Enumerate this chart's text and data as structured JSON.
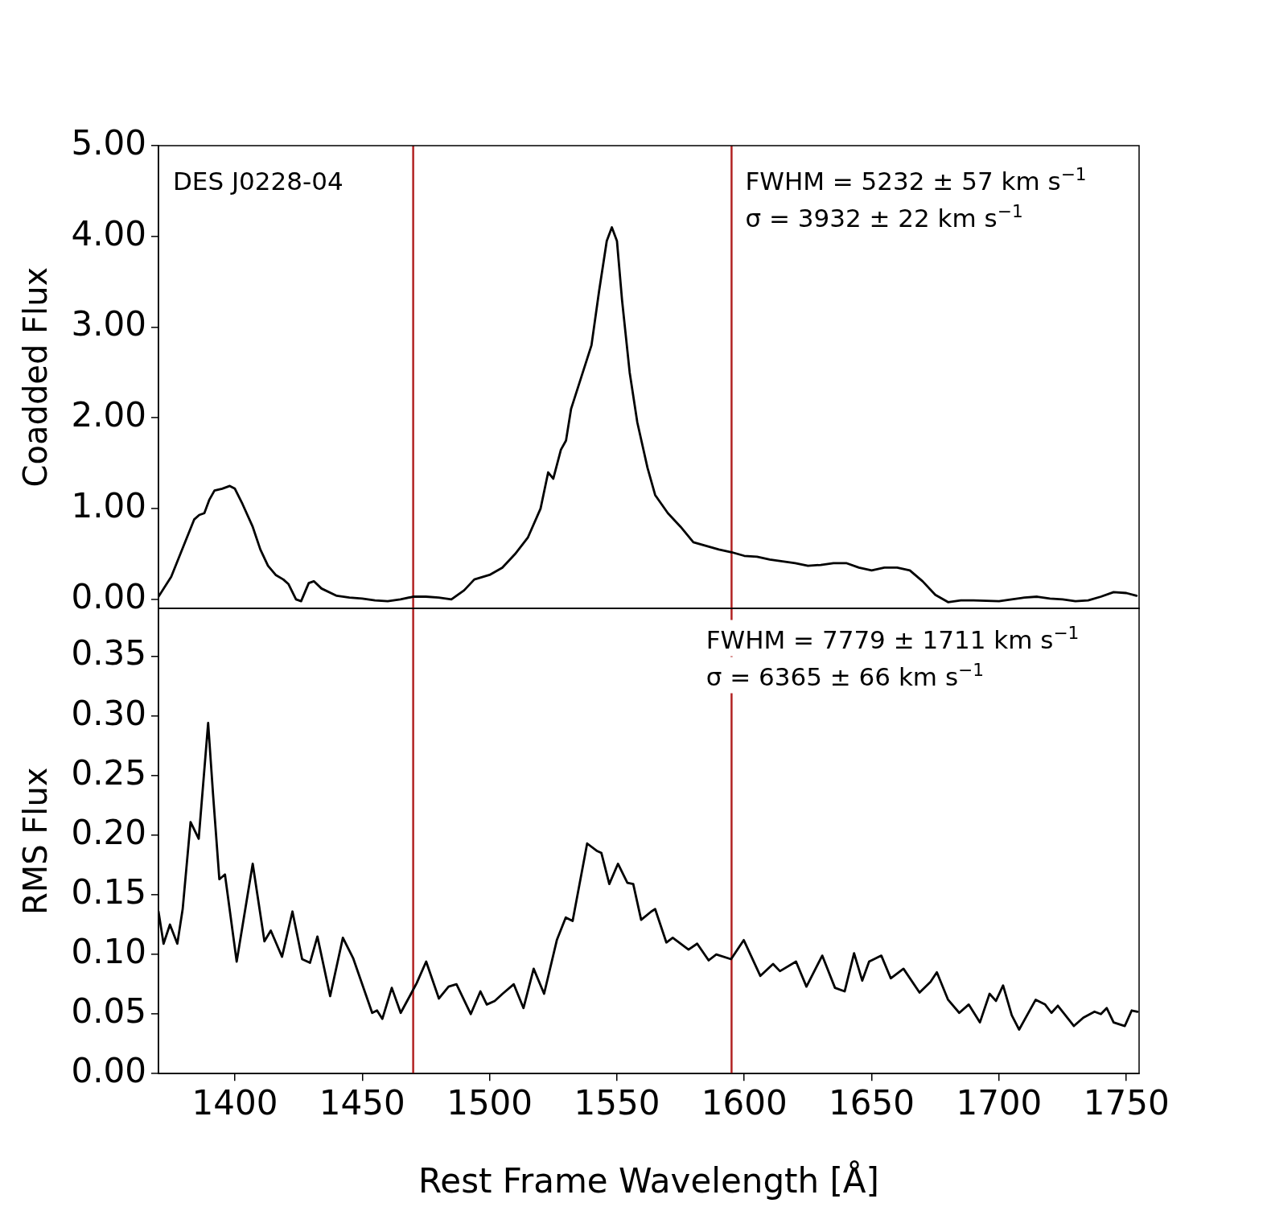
{
  "chart_data": [
    {
      "type": "line",
      "ylabel": "Coadded Flux",
      "xlim": [
        1370,
        1755
      ],
      "ylim": [
        -0.1,
        5
      ],
      "yticks": [
        {
          "value": 0,
          "label": "0.00"
        },
        {
          "value": 1,
          "label": "1.00"
        },
        {
          "value": 2,
          "label": "2.00"
        },
        {
          "value": 3,
          "label": "3.00"
        },
        {
          "value": 4,
          "label": "4.00"
        },
        {
          "value": 5,
          "label": "5.00"
        }
      ],
      "tick_labels": "y",
      "grid": false,
      "legend": false,
      "marker": "none",
      "line_style": "solid",
      "annotations": [
        "DES J0228-04",
        "FWHM = 5232 ± 57 km s$^{−1}$",
        "σ = 3932 ± 22 km s$^{−1}$"
      ],
      "ref_lines": [
        {
          "axis": "x",
          "value": 1470,
          "color": "#b22222"
        },
        {
          "axis": "x",
          "value": 1595,
          "color": "#b22222"
        }
      ],
      "series": [
        {
          "color": "#000000",
          "x": [
            1370,
            1375,
            1380,
            1384,
            1386,
            1388,
            1390,
            1392,
            1395,
            1398,
            1400,
            1403,
            1407,
            1410,
            1413,
            1416,
            1419,
            1421,
            1424,
            1426,
            1429,
            1431,
            1434,
            1440,
            1445,
            1450,
            1455,
            1460,
            1465,
            1470,
            1475,
            1480,
            1485,
            1490,
            1494,
            1500,
            1505,
            1510,
            1515,
            1520,
            1523,
            1525,
            1528,
            1530,
            1532,
            1536,
            1540,
            1543,
            1546,
            1548,
            1550,
            1552,
            1555,
            1558,
            1562,
            1565,
            1570,
            1575,
            1580,
            1585,
            1590,
            1595,
            1600,
            1605,
            1610,
            1620,
            1625,
            1630,
            1635,
            1640,
            1645,
            1650,
            1655,
            1660,
            1665,
            1670,
            1675,
            1680,
            1685,
            1690,
            1700,
            1705,
            1710,
            1715,
            1720,
            1725,
            1730,
            1735,
            1740,
            1745,
            1750,
            1754
          ],
          "values": [
            0.03,
            0.25,
            0.6,
            0.88,
            0.93,
            0.95,
            1.1,
            1.2,
            1.22,
            1.25,
            1.22,
            1.05,
            0.8,
            0.55,
            0.37,
            0.27,
            0.22,
            0.17,
            0.0,
            -0.02,
            0.18,
            0.2,
            0.12,
            0.04,
            0.02,
            0.01,
            -0.01,
            -0.02,
            0.0,
            0.03,
            0.03,
            0.02,
            0.0,
            0.1,
            0.22,
            0.27,
            0.35,
            0.5,
            0.68,
            1.0,
            1.4,
            1.33,
            1.65,
            1.75,
            2.1,
            2.45,
            2.8,
            3.4,
            3.95,
            4.1,
            3.95,
            3.3,
            2.5,
            1.95,
            1.45,
            1.15,
            0.95,
            0.8,
            0.63,
            0.59,
            0.55,
            0.52,
            0.48,
            0.47,
            0.44,
            0.4,
            0.37,
            0.38,
            0.4,
            0.4,
            0.35,
            0.32,
            0.35,
            0.35,
            0.32,
            0.2,
            0.05,
            -0.03,
            -0.01,
            -0.01,
            -0.02,
            0.0,
            0.02,
            0.03,
            0.01,
            0.0,
            -0.02,
            -0.01,
            0.03,
            0.08,
            0.07,
            0.04
          ]
        }
      ]
    },
    {
      "type": "line",
      "xlabel": "Rest Frame Wavelength [Å]",
      "ylabel": "RMS Flux",
      "xlim": [
        1370,
        1755
      ],
      "ylim": [
        0,
        0.39
      ],
      "xticks": [
        1400,
        1450,
        1500,
        1550,
        1600,
        1650,
        1700,
        1750
      ],
      "yticks": [
        {
          "value": 0,
          "label": "0.00"
        },
        {
          "value": 0.05,
          "label": "0.05"
        },
        {
          "value": 0.1,
          "label": "0.10"
        },
        {
          "value": 0.15,
          "label": "0.15"
        },
        {
          "value": 0.2,
          "label": "0.20"
        },
        {
          "value": 0.25,
          "label": "0.25"
        },
        {
          "value": 0.3,
          "label": "0.30"
        },
        {
          "value": 0.35,
          "label": "0.35"
        }
      ],
      "grid": false,
      "legend": false,
      "marker": "none",
      "line_style": "solid",
      "annotations": [
        "FWHM = 7779 ± 1711 km s$^{−1}$",
        "σ = 6365 ± 66 km s$^{−1}$"
      ],
      "ref_lines": [
        {
          "axis": "x",
          "value": 1470,
          "color": "#b22222"
        },
        {
          "axis": "x",
          "value": 1595,
          "color": "#b22222"
        }
      ],
      "series": [
        {
          "color": "#000000",
          "x": [
            1370,
            1372,
            1374.5,
            1377.4,
            1379.5,
            1382.6,
            1385.8,
            1389.5,
            1391.4,
            1393.9,
            1396.1,
            1400.7,
            1407,
            1411.6,
            1414.1,
            1418.5,
            1422.6,
            1426.4,
            1429.5,
            1432.4,
            1437.4,
            1442.4,
            1446.4,
            1453.9,
            1455.8,
            1457.9,
            1461.6,
            1465.1,
            1468.9,
            1471.4,
            1475.1,
            1480.1,
            1483.9,
            1487,
            1492.6,
            1496.4,
            1498.9,
            1502,
            1505.1,
            1509.5,
            1513.3,
            1517.3,
            1521.4,
            1526.4,
            1529.9,
            1532.6,
            1538.3,
            1542,
            1543.9,
            1547,
            1550.4,
            1554.1,
            1556.4,
            1559.5,
            1563.5,
            1565,
            1569.4,
            1571.9,
            1578.1,
            1581.5,
            1586,
            1589,
            1594.8,
            1599.8,
            1606.3,
            1611.3,
            1614,
            1620.3,
            1624.4,
            1630.6,
            1635.6,
            1639.4,
            1643.1,
            1646.3,
            1649,
            1653.8,
            1657.5,
            1662.5,
            1668.8,
            1673.1,
            1675.6,
            1680,
            1684.4,
            1688.1,
            1692.5,
            1696.3,
            1698.8,
            1701.6,
            1705,
            1707.9,
            1714.4,
            1718.1,
            1720.6,
            1723.1,
            1729.4,
            1733.1,
            1737.5,
            1740,
            1742.3,
            1745,
            1749.4,
            1752.1,
            1754.4
          ],
          "values": [
            0.136,
            0.109,
            0.125,
            0.109,
            0.138,
            0.211,
            0.197,
            0.294,
            0.235,
            0.163,
            0.167,
            0.094,
            0.176,
            0.111,
            0.12,
            0.098,
            0.136,
            0.096,
            0.093,
            0.115,
            0.065,
            0.114,
            0.097,
            0.051,
            0.053,
            0.046,
            0.072,
            0.051,
            0.066,
            0.076,
            0.094,
            0.063,
            0.073,
            0.075,
            0.05,
            0.069,
            0.058,
            0.061,
            0.067,
            0.075,
            0.055,
            0.088,
            0.067,
            0.112,
            0.131,
            0.128,
            0.193,
            0.187,
            0.185,
            0.159,
            0.176,
            0.16,
            0.159,
            0.129,
            0.136,
            0.138,
            0.11,
            0.114,
            0.104,
            0.109,
            0.095,
            0.1,
            0.096,
            0.112,
            0.082,
            0.092,
            0.086,
            0.094,
            0.073,
            0.099,
            0.072,
            0.069,
            0.101,
            0.078,
            0.094,
            0.099,
            0.08,
            0.088,
            0.068,
            0.077,
            0.085,
            0.062,
            0.051,
            0.058,
            0.043,
            0.067,
            0.061,
            0.074,
            0.049,
            0.037,
            0.062,
            0.058,
            0.051,
            0.057,
            0.04,
            0.047,
            0.052,
            0.05,
            0.055,
            0.043,
            0.04,
            0.053,
            0.052
          ]
        }
      ]
    }
  ]
}
